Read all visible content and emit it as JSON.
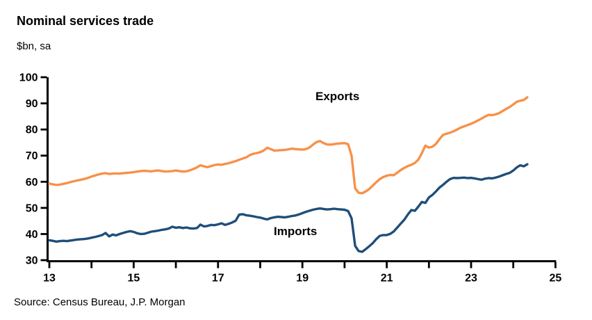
{
  "title": "Nominal services trade",
  "subtitle": "$bn, sa",
  "source": "Source: Census Bureau, J.P. Morgan",
  "colors": {
    "exports": "#F79149",
    "imports": "#1F4E79",
    "axis": "#000000",
    "background": "#FFFFFF"
  },
  "chart_data": {
    "type": "line",
    "title": "Nominal services trade",
    "ylabel": "$bn, sa",
    "grid": false,
    "legend": "inline-labels",
    "x_axis": {
      "range": [
        13,
        25
      ],
      "ticks": [
        13,
        14,
        15,
        16,
        17,
        18,
        19,
        20,
        21,
        22,
        23,
        24,
        25
      ],
      "labeled_ticks": [
        "13",
        "15",
        "17",
        "19",
        "21",
        "23",
        "25"
      ]
    },
    "y_axis": {
      "range": [
        30,
        100
      ],
      "ticks": [
        30,
        40,
        50,
        60,
        70,
        80,
        90,
        100
      ]
    },
    "x_start": 13.0,
    "x_step": "monthly (1/12 year)",
    "series": [
      {
        "name": "Exports",
        "color": "#F79149",
        "values": [
          59.3,
          59.0,
          58.8,
          58.9,
          59.2,
          59.5,
          59.9,
          60.2,
          60.5,
          60.8,
          61.1,
          61.5,
          62.0,
          62.4,
          62.8,
          63.1,
          63.3,
          63.0,
          63.1,
          63.2,
          63.1,
          63.3,
          63.4,
          63.5,
          63.7,
          63.9,
          64.1,
          64.2,
          64.1,
          64.0,
          64.2,
          64.3,
          64.1,
          63.9,
          64.0,
          64.1,
          64.3,
          64.1,
          63.9,
          64.0,
          64.4,
          64.9,
          65.5,
          66.3,
          65.9,
          65.6,
          66.0,
          66.4,
          66.6,
          66.5,
          66.8,
          67.1,
          67.5,
          67.9,
          68.4,
          68.9,
          69.3,
          70.2,
          70.7,
          71.0,
          71.3,
          72.0,
          73.0,
          72.5,
          71.9,
          72.0,
          72.1,
          72.2,
          72.4,
          72.7,
          72.5,
          72.4,
          72.3,
          72.5,
          73.1,
          74.2,
          75.2,
          75.6,
          74.8,
          74.3,
          74.2,
          74.4,
          74.6,
          74.7,
          74.8,
          74.4,
          70.0,
          57.5,
          55.8,
          55.6,
          56.3,
          57.2,
          58.5,
          59.8,
          61.0,
          61.8,
          62.3,
          62.6,
          62.5,
          63.5,
          64.5,
          65.3,
          66.0,
          66.5,
          67.2,
          68.5,
          71.0,
          73.8,
          73.1,
          73.4,
          74.5,
          76.3,
          77.9,
          78.4,
          78.8,
          79.3,
          80.0,
          80.7,
          81.2,
          81.7,
          82.2,
          82.8,
          83.5,
          84.2,
          85.0,
          85.6,
          85.5,
          85.8,
          86.3,
          87.1,
          87.9,
          88.6,
          89.6,
          90.6,
          91.0,
          91.3,
          92.3
        ]
      },
      {
        "name": "Imports",
        "color": "#1F4E79",
        "values": [
          37.6,
          37.4,
          37.1,
          37.3,
          37.4,
          37.3,
          37.5,
          37.7,
          37.9,
          38.0,
          38.1,
          38.3,
          38.6,
          38.9,
          39.2,
          39.6,
          40.4,
          39.1,
          39.8,
          39.5,
          40.0,
          40.4,
          40.8,
          41.1,
          40.8,
          40.3,
          40.0,
          40.1,
          40.5,
          40.9,
          41.1,
          41.3,
          41.6,
          41.8,
          42.1,
          42.8,
          42.4,
          42.6,
          42.3,
          42.5,
          42.2,
          42.1,
          42.3,
          43.6,
          42.9,
          43.1,
          43.5,
          43.4,
          43.7,
          44.1,
          43.5,
          43.9,
          44.4,
          45.1,
          47.4,
          47.6,
          47.2,
          47.0,
          46.8,
          46.5,
          46.3,
          45.9,
          45.6,
          46.1,
          46.4,
          46.6,
          46.5,
          46.4,
          46.6,
          46.9,
          47.1,
          47.5,
          48.0,
          48.5,
          48.9,
          49.3,
          49.6,
          49.8,
          49.6,
          49.4,
          49.5,
          49.7,
          49.5,
          49.4,
          49.3,
          48.8,
          46.0,
          35.5,
          33.5,
          33.2,
          34.2,
          35.3,
          36.5,
          38.0,
          39.3,
          39.6,
          39.6,
          40.1,
          41.0,
          42.5,
          44.0,
          45.5,
          47.5,
          49.2,
          48.9,
          50.5,
          52.3,
          51.9,
          54.0,
          55.0,
          56.3,
          57.8,
          58.8,
          60.0,
          61.0,
          61.5,
          61.4,
          61.5,
          61.6,
          61.4,
          61.5,
          61.3,
          61.0,
          60.8,
          61.2,
          61.4,
          61.3,
          61.6,
          62.0,
          62.5,
          63.0,
          63.4,
          64.3,
          65.5,
          66.3,
          65.9,
          66.7
        ]
      }
    ]
  }
}
